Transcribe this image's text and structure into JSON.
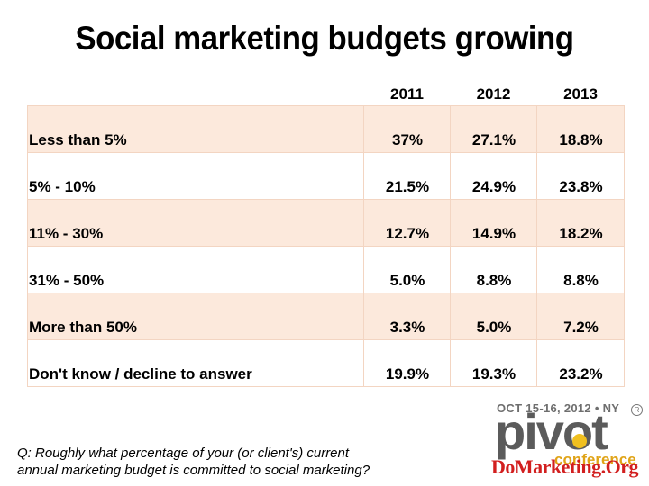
{
  "title": "Social marketing budgets growing",
  "table": {
    "columns": [
      "",
      "2011",
      "2012",
      "2013"
    ],
    "rows": [
      {
        "label": "Less than 5%",
        "values": [
          "37%",
          "27.1%",
          "18.8%"
        ]
      },
      {
        "label": "5% - 10%",
        "values": [
          "21.5%",
          "24.9%",
          "23.8%"
        ]
      },
      {
        "label": "11% - 30%",
        "values": [
          "12.7%",
          "14.9%",
          "18.2%"
        ]
      },
      {
        "label": "31% - 50%",
        "values": [
          "5.0%",
          "8.8%",
          "8.8%"
        ]
      },
      {
        "label": "More than 50%",
        "values": [
          "3.3%",
          "5.0%",
          "7.2%"
        ]
      },
      {
        "label": "Don't know / decline to answer",
        "values": [
          "19.9%",
          "19.3%",
          "23.2%"
        ]
      }
    ],
    "row_shading": [
      "#fce9dc",
      "#ffffff"
    ]
  },
  "question": {
    "line1": "Q: Roughly what percentage of your (or client's) current",
    "line2": "annual marketing budget is committed to social marketing?"
  },
  "logo": {
    "date": "OCT 15-16, 2012 • NY",
    "word": "pivot",
    "sub": "conference",
    "registered": "R",
    "site": "DoMarketing.Org"
  }
}
